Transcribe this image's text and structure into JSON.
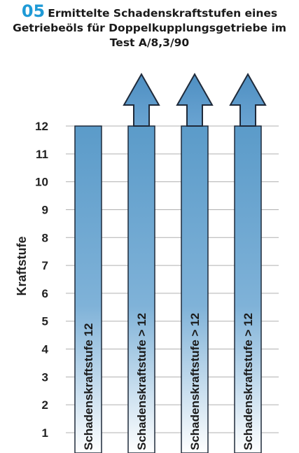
{
  "figure": {
    "number": "05",
    "title_line1": "Ermittelte Schadenskraftstufen eines",
    "title_line2": "Getriebeöls für Doppelkupplungsgetriebe im",
    "title_line3": "Test A/8,3/90"
  },
  "colors": {
    "accent": "#1f9ad6",
    "bar_top": "#5b9bc9",
    "bar_bottom": "#ffffff",
    "grid": "#b0b0b0",
    "bar_stroke": "#1f2a3a"
  },
  "chart_data": {
    "type": "bar",
    "title": "",
    "xlabel": "",
    "ylabel": "Kraftstufe",
    "ylim": [
      0,
      12
    ],
    "yticks": [
      1,
      2,
      3,
      4,
      5,
      6,
      7,
      8,
      9,
      10,
      11,
      12
    ],
    "grid": true,
    "categories": [
      "Schadenskraftstufe 12",
      "Schadenskraftstufe > 12",
      "Schadenskraftstufe > 12",
      "Schadenskraftstufe > 12"
    ],
    "values": [
      12,
      12,
      12,
      12
    ],
    "exceeds_scale": [
      false,
      true,
      true,
      true
    ]
  }
}
